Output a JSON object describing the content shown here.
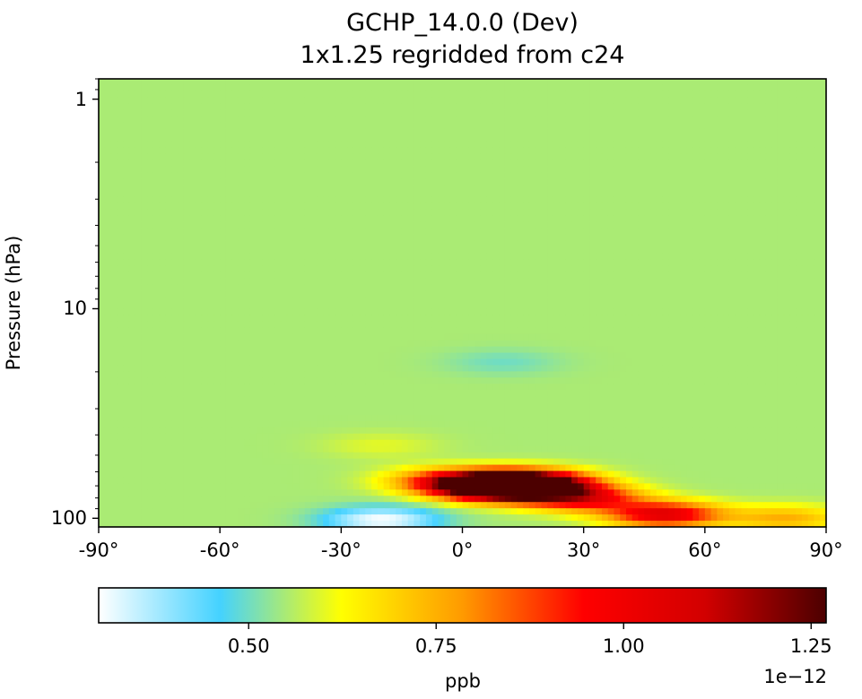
{
  "chart_data": {
    "type": "heatmap",
    "title_lines": [
      "GCHP_14.0.0 (Dev)",
      "1x1.25 regridded from c24"
    ],
    "xlabel": "",
    "ylabel": "Pressure (hPa)",
    "x_axis": {
      "range": [
        -90,
        90
      ],
      "ticks": [
        -90,
        -60,
        -30,
        0,
        30,
        60,
        90
      ],
      "tick_labels": [
        "-90°",
        "-60°",
        "-30°",
        "0°",
        "30°",
        "60°",
        "90°"
      ]
    },
    "y_axis": {
      "scale": "log",
      "inverted": true,
      "range": [
        110,
        0.8
      ],
      "ticks": [
        1,
        10,
        100
      ],
      "tick_labels": [
        "1",
        "10",
        "100"
      ]
    },
    "grid": false,
    "colorbar": {
      "orientation": "horizontal",
      "placement": "bottom",
      "label": "ppb",
      "scale_label": "1e−12",
      "range": [
        0.3,
        1.27
      ],
      "ticks": [
        0.5,
        0.75,
        1.0,
        1.25
      ],
      "tick_labels": [
        "0.50",
        "0.75",
        "1.00",
        "1.25"
      ],
      "colormap_stops": [
        "#ffffff",
        "#44d2ff",
        "#ffff00",
        "#ff9a00",
        "#ff0000",
        "#d20000",
        "#4c0000"
      ]
    },
    "background_value": 0.55,
    "features": [
      {
        "lat": 5,
        "pressure": 69,
        "value": 1.27
      },
      {
        "lat": 12,
        "pressure": 72,
        "value": 1.25
      },
      {
        "lat": 18,
        "pressure": 68,
        "value": 1.2
      },
      {
        "lat": -6,
        "pressure": 66,
        "value": 0.75
      },
      {
        "lat": 30,
        "pressure": 80,
        "value": 1.0
      },
      {
        "lat": 50,
        "pressure": 96,
        "value": 1.05
      },
      {
        "lat": 80,
        "pressure": 100,
        "value": 0.75
      },
      {
        "lat": -20,
        "pressure": 102,
        "value": 0.3
      },
      {
        "lat": 10,
        "pressure": 18,
        "value": 0.5
      },
      {
        "lat": -20,
        "pressure": 45,
        "value": 0.6
      }
    ]
  }
}
